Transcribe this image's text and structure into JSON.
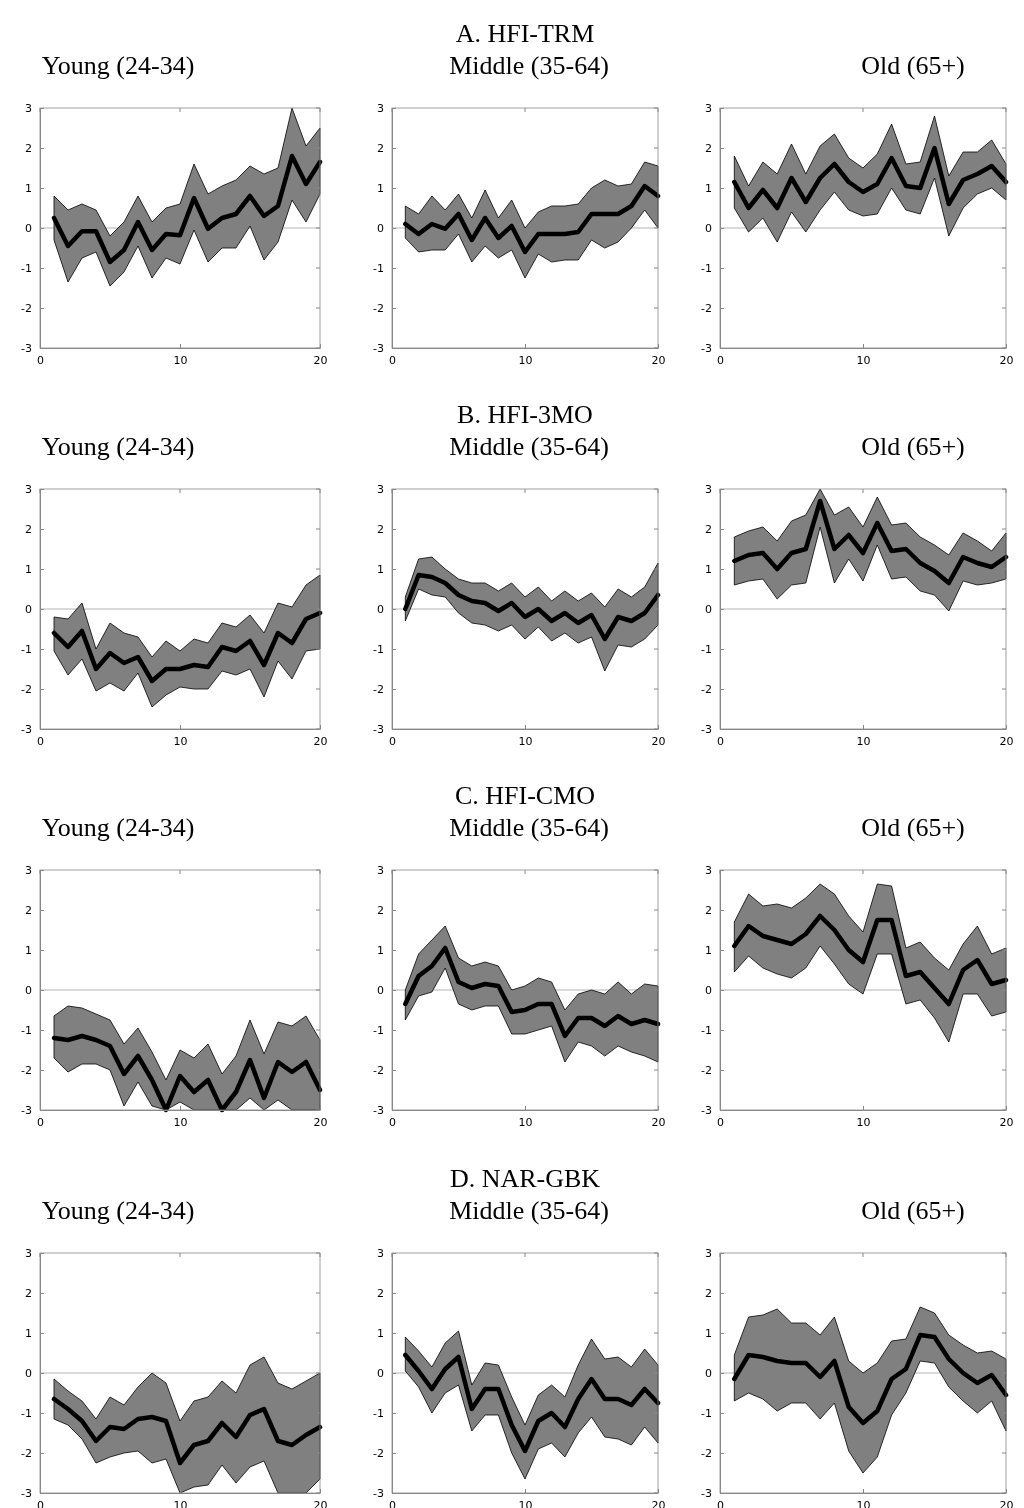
{
  "chart_data": [
    {
      "type": "line",
      "title": "Young (24-34)",
      "x": [
        1,
        2,
        3,
        4,
        5,
        6,
        7,
        8,
        9,
        10,
        11,
        12,
        13,
        14,
        15,
        16,
        17,
        18,
        19,
        20
      ],
      "xlim": [
        0,
        20
      ],
      "xticks": [
        0,
        10,
        20
      ],
      "ylim": [
        -3,
        3
      ],
      "yticks": [
        -3,
        -2,
        -1,
        0,
        1,
        2,
        3
      ],
      "ref_lines": [
        {
          "axis": "y",
          "value": 0,
          "color": "#b4b4b4"
        }
      ],
      "series": [
        {
          "color": "#000000",
          "values": [
            0.25,
            -0.45,
            -0.08,
            -0.08,
            -0.85,
            -0.55,
            0.15,
            -0.55,
            -0.15,
            -0.18,
            0.75,
            -0.02,
            0.25,
            0.35,
            0.8,
            0.3,
            0.55,
            1.8,
            1.1,
            1.65
          ],
          "upper": [
            0.8,
            0.45,
            0.6,
            0.45,
            -0.2,
            0.15,
            0.8,
            0.15,
            0.5,
            0.6,
            1.6,
            0.85,
            1.05,
            1.2,
            1.55,
            1.35,
            1.5,
            3.0,
            2.05,
            2.5
          ],
          "lower": [
            -0.3,
            -1.35,
            -0.75,
            -0.6,
            -1.45,
            -1.1,
            -0.45,
            -1.25,
            -0.75,
            -0.9,
            -0.05,
            -0.85,
            -0.5,
            -0.5,
            0.05,
            -0.8,
            -0.35,
            0.7,
            0.15,
            0.85
          ]
        }
      ]
    },
    {
      "type": "line",
      "title": "A. HFI-TRM",
      "subtitle": "Middle (35-64)",
      "x": [
        1,
        2,
        3,
        4,
        5,
        6,
        7,
        8,
        9,
        10,
        11,
        12,
        13,
        14,
        15,
        16,
        17,
        18,
        19,
        20
      ],
      "xlim": [
        0,
        20
      ],
      "xticks": [
        0,
        10,
        20
      ],
      "ylim": [
        -3,
        3
      ],
      "yticks": [
        -3,
        -2,
        -1,
        0,
        1,
        2,
        3
      ],
      "ref_lines": [
        {
          "axis": "y",
          "value": 0,
          "color": "#b4b4b4"
        }
      ],
      "series": [
        {
          "color": "#000000",
          "values": [
            0.1,
            -0.15,
            0.1,
            -0.02,
            0.35,
            -0.3,
            0.25,
            -0.25,
            0.05,
            -0.6,
            -0.15,
            -0.15,
            -0.15,
            -0.1,
            0.35,
            0.35,
            0.35,
            0.55,
            1.05,
            0.8
          ],
          "upper": [
            0.55,
            0.35,
            0.8,
            0.45,
            0.85,
            0.25,
            0.95,
            0.25,
            0.7,
            0.0,
            0.4,
            0.55,
            0.55,
            0.6,
            1.0,
            1.2,
            1.05,
            1.1,
            1.65,
            1.55
          ],
          "lower": [
            -0.25,
            -0.6,
            -0.55,
            -0.55,
            -0.15,
            -0.85,
            -0.45,
            -0.75,
            -0.55,
            -1.25,
            -0.65,
            -0.85,
            -0.8,
            -0.8,
            -0.3,
            -0.5,
            -0.35,
            0.0,
            0.45,
            0.0
          ]
        }
      ]
    },
    {
      "type": "line",
      "title": "Old (65+)",
      "x": [
        1,
        2,
        3,
        4,
        5,
        6,
        7,
        8,
        9,
        10,
        11,
        12,
        13,
        14,
        15,
        16,
        17,
        18,
        19,
        20
      ],
      "xlim": [
        0,
        20
      ],
      "xticks": [
        0,
        10,
        20
      ],
      "ylim": [
        -3,
        3
      ],
      "yticks": [
        -3,
        -2,
        -1,
        0,
        1,
        2,
        3
      ],
      "ref_lines": [
        {
          "axis": "y",
          "value": 0,
          "color": "#b4b4b4"
        }
      ],
      "series": [
        {
          "color": "#000000",
          "values": [
            1.15,
            0.5,
            0.95,
            0.5,
            1.25,
            0.65,
            1.25,
            1.6,
            1.15,
            0.9,
            1.1,
            1.75,
            1.05,
            1.0,
            2.0,
            0.6,
            1.2,
            1.35,
            1.55,
            1.15
          ],
          "upper": [
            1.8,
            1.05,
            1.65,
            1.35,
            2.1,
            1.35,
            2.05,
            2.35,
            1.75,
            1.5,
            1.85,
            2.6,
            1.6,
            1.65,
            2.8,
            1.3,
            1.9,
            1.9,
            2.2,
            1.6
          ],
          "lower": [
            0.5,
            -0.1,
            0.25,
            -0.35,
            0.4,
            -0.1,
            0.45,
            0.9,
            0.45,
            0.3,
            0.35,
            1.0,
            0.45,
            0.35,
            1.25,
            -0.2,
            0.5,
            0.85,
            1.0,
            0.7
          ]
        }
      ]
    },
    {
      "type": "line",
      "title": "Young (24-34)",
      "x": [
        1,
        2,
        3,
        4,
        5,
        6,
        7,
        8,
        9,
        10,
        11,
        12,
        13,
        14,
        15,
        16,
        17,
        18,
        19,
        20
      ],
      "xlim": [
        0,
        20
      ],
      "xticks": [
        0,
        10,
        20
      ],
      "ylim": [
        -3,
        3
      ],
      "yticks": [
        -3,
        -2,
        -1,
        0,
        1,
        2,
        3
      ],
      "ref_lines": [
        {
          "axis": "y",
          "value": 0,
          "color": "#b4b4b4"
        }
      ],
      "series": [
        {
          "color": "#000000",
          "values": [
            -0.6,
            -0.95,
            -0.55,
            -1.5,
            -1.1,
            -1.35,
            -1.2,
            -1.8,
            -1.5,
            -1.5,
            -1.4,
            -1.45,
            -0.95,
            -1.05,
            -0.8,
            -1.4,
            -0.6,
            -0.85,
            -0.25,
            -0.1
          ],
          "upper": [
            -0.2,
            -0.25,
            0.15,
            -1.0,
            -0.35,
            -0.6,
            -0.7,
            -1.2,
            -0.8,
            -1.05,
            -0.75,
            -0.85,
            -0.35,
            -0.45,
            -0.15,
            -0.6,
            0.15,
            0.05,
            0.6,
            0.85
          ],
          "lower": [
            -1.05,
            -1.65,
            -1.25,
            -2.05,
            -1.85,
            -2.05,
            -1.6,
            -2.45,
            -2.15,
            -1.95,
            -2.0,
            -2.0,
            -1.55,
            -1.65,
            -1.5,
            -2.2,
            -1.3,
            -1.75,
            -1.05,
            -1.0
          ]
        }
      ]
    },
    {
      "type": "line",
      "title": "B. HFI-3MO",
      "subtitle": "Middle (35-64)",
      "x": [
        1,
        2,
        3,
        4,
        5,
        6,
        7,
        8,
        9,
        10,
        11,
        12,
        13,
        14,
        15,
        16,
        17,
        18,
        19,
        20
      ],
      "xlim": [
        0,
        20
      ],
      "xticks": [
        0,
        10,
        20
      ],
      "ylim": [
        -3,
        3
      ],
      "yticks": [
        -3,
        -2,
        -1,
        0,
        1,
        2,
        3
      ],
      "ref_lines": [
        {
          "axis": "y",
          "value": 0,
          "color": "#b4b4b4"
        }
      ],
      "series": [
        {
          "color": "#000000",
          "values": [
            0.0,
            0.85,
            0.8,
            0.65,
            0.35,
            0.2,
            0.15,
            -0.05,
            0.15,
            -0.2,
            0.0,
            -0.3,
            -0.1,
            -0.35,
            -0.15,
            -0.75,
            -0.2,
            -0.3,
            -0.1,
            0.35
          ],
          "upper": [
            0.3,
            1.25,
            1.3,
            1.0,
            0.75,
            0.65,
            0.65,
            0.45,
            0.65,
            0.3,
            0.55,
            0.2,
            0.45,
            0.2,
            0.4,
            0.05,
            0.5,
            0.3,
            0.55,
            1.15
          ],
          "lower": [
            -0.3,
            0.5,
            0.35,
            0.3,
            -0.1,
            -0.35,
            -0.4,
            -0.55,
            -0.4,
            -0.75,
            -0.45,
            -0.8,
            -0.6,
            -0.85,
            -0.7,
            -1.55,
            -0.9,
            -0.95,
            -0.75,
            -0.4
          ]
        }
      ]
    },
    {
      "type": "line",
      "title": "Old (65+)",
      "x": [
        1,
        2,
        3,
        4,
        5,
        6,
        7,
        8,
        9,
        10,
        11,
        12,
        13,
        14,
        15,
        16,
        17,
        18,
        19,
        20
      ],
      "xlim": [
        0,
        20
      ],
      "xticks": [
        0,
        10,
        20
      ],
      "ylim": [
        -3,
        3
      ],
      "yticks": [
        -3,
        -2,
        -1,
        0,
        1,
        2,
        3
      ],
      "ref_lines": [
        {
          "axis": "y",
          "value": 0,
          "color": "#b4b4b4"
        }
      ],
      "series": [
        {
          "color": "#000000",
          "values": [
            1.2,
            1.35,
            1.4,
            1.0,
            1.4,
            1.5,
            2.7,
            1.5,
            1.85,
            1.4,
            2.15,
            1.45,
            1.5,
            1.15,
            0.95,
            0.65,
            1.3,
            1.15,
            1.05,
            1.3
          ],
          "upper": [
            1.8,
            1.95,
            2.05,
            1.7,
            2.2,
            2.35,
            3.0,
            2.35,
            2.55,
            2.05,
            2.8,
            2.1,
            2.15,
            1.8,
            1.6,
            1.35,
            1.9,
            1.7,
            1.45,
            1.9
          ],
          "lower": [
            0.6,
            0.7,
            0.75,
            0.25,
            0.6,
            0.65,
            2.05,
            0.65,
            1.25,
            0.7,
            1.6,
            0.75,
            0.8,
            0.45,
            0.35,
            -0.05,
            0.7,
            0.6,
            0.65,
            0.75
          ]
        }
      ]
    },
    {
      "type": "line",
      "title": "Young (24-34)",
      "x": [
        1,
        2,
        3,
        4,
        5,
        6,
        7,
        8,
        9,
        10,
        11,
        12,
        13,
        14,
        15,
        16,
        17,
        18,
        19,
        20
      ],
      "xlim": [
        0,
        20
      ],
      "xticks": [
        0,
        10,
        20
      ],
      "ylim": [
        -3,
        3
      ],
      "yticks": [
        -3,
        -2,
        -1,
        0,
        1,
        2,
        3
      ],
      "ref_lines": [
        {
          "axis": "y",
          "value": 0,
          "color": "#b4b4b4"
        }
      ],
      "series": [
        {
          "color": "#000000",
          "values": [
            -1.2,
            -1.25,
            -1.15,
            -1.25,
            -1.4,
            -2.1,
            -1.65,
            -2.25,
            -3.0,
            -2.15,
            -2.55,
            -2.25,
            -3.0,
            -2.55,
            -1.75,
            -2.7,
            -1.8,
            -2.05,
            -1.8,
            -2.5
          ],
          "upper": [
            -0.65,
            -0.4,
            -0.45,
            -0.6,
            -0.75,
            -1.35,
            -0.95,
            -1.55,
            -2.25,
            -1.5,
            -1.7,
            -1.35,
            -2.1,
            -1.65,
            -0.75,
            -1.6,
            -0.8,
            -0.9,
            -0.65,
            -1.25
          ],
          "lower": [
            -1.7,
            -2.05,
            -1.85,
            -1.85,
            -2.0,
            -2.9,
            -2.3,
            -2.9,
            -3.0,
            -2.8,
            -3.0,
            -3.0,
            -3.0,
            -3.0,
            -2.7,
            -3.0,
            -2.75,
            -3.0,
            -3.0,
            -3.0
          ]
        }
      ]
    },
    {
      "type": "line",
      "title": "C. HFI-CMO",
      "subtitle": "Middle (35-64)",
      "x": [
        1,
        2,
        3,
        4,
        5,
        6,
        7,
        8,
        9,
        10,
        11,
        12,
        13,
        14,
        15,
        16,
        17,
        18,
        19,
        20
      ],
      "xlim": [
        0,
        20
      ],
      "xticks": [
        0,
        10,
        20
      ],
      "ylim": [
        -3,
        3
      ],
      "yticks": [
        -3,
        -2,
        -1,
        0,
        1,
        2,
        3
      ],
      "ref_lines": [
        {
          "axis": "y",
          "value": 0,
          "color": "#b4b4b4"
        }
      ],
      "series": [
        {
          "color": "#000000",
          "values": [
            -0.35,
            0.35,
            0.6,
            1.05,
            0.2,
            0.05,
            0.15,
            0.1,
            -0.55,
            -0.5,
            -0.35,
            -0.35,
            -1.15,
            -0.7,
            -0.7,
            -0.9,
            -0.65,
            -0.85,
            -0.75,
            -0.85
          ],
          "upper": [
            0.0,
            0.9,
            1.25,
            1.6,
            0.8,
            0.6,
            0.7,
            0.6,
            0.0,
            0.1,
            0.3,
            0.2,
            -0.5,
            -0.1,
            0.0,
            -0.1,
            0.2,
            -0.1,
            0.15,
            0.1
          ],
          "lower": [
            -0.75,
            -0.15,
            -0.05,
            0.55,
            -0.35,
            -0.5,
            -0.4,
            -0.4,
            -1.1,
            -1.1,
            -1.0,
            -0.9,
            -1.8,
            -1.3,
            -1.4,
            -1.65,
            -1.4,
            -1.55,
            -1.65,
            -1.8
          ]
        }
      ]
    },
    {
      "type": "line",
      "title": "Old (65+)",
      "x": [
        1,
        2,
        3,
        4,
        5,
        6,
        7,
        8,
        9,
        10,
        11,
        12,
        13,
        14,
        15,
        16,
        17,
        18,
        19,
        20
      ],
      "xlim": [
        0,
        20
      ],
      "xticks": [
        0,
        10,
        20
      ],
      "ylim": [
        -3,
        3
      ],
      "yticks": [
        -3,
        -2,
        -1,
        0,
        1,
        2,
        3
      ],
      "ref_lines": [
        {
          "axis": "y",
          "value": 0,
          "color": "#b4b4b4"
        }
      ],
      "series": [
        {
          "color": "#000000",
          "values": [
            1.1,
            1.6,
            1.35,
            1.25,
            1.15,
            1.4,
            1.85,
            1.5,
            1.0,
            0.7,
            1.75,
            1.75,
            0.35,
            0.45,
            0.05,
            -0.35,
            0.5,
            0.75,
            0.15,
            0.25
          ],
          "upper": [
            1.7,
            2.4,
            2.1,
            2.15,
            2.05,
            2.3,
            2.65,
            2.4,
            1.85,
            1.45,
            2.65,
            2.6,
            1.05,
            1.2,
            0.8,
            0.5,
            1.15,
            1.6,
            0.9,
            1.05
          ],
          "lower": [
            0.45,
            0.85,
            0.55,
            0.4,
            0.3,
            0.55,
            1.1,
            0.65,
            0.15,
            -0.1,
            0.9,
            0.9,
            -0.35,
            -0.25,
            -0.7,
            -1.3,
            -0.1,
            -0.1,
            -0.65,
            -0.55
          ]
        }
      ]
    },
    {
      "type": "line",
      "title": "Young (24-34)",
      "x": [
        1,
        2,
        3,
        4,
        5,
        6,
        7,
        8,
        9,
        10,
        11,
        12,
        13,
        14,
        15,
        16,
        17,
        18,
        19,
        20
      ],
      "xlim": [
        0,
        20
      ],
      "xticks": [
        0,
        10,
        20
      ],
      "ylim": [
        -3,
        3
      ],
      "yticks": [
        -3,
        -2,
        -1,
        0,
        1,
        2,
        3
      ],
      "ref_lines": [
        {
          "axis": "y",
          "value": 0,
          "color": "#b4b4b4"
        }
      ],
      "series": [
        {
          "color": "#000000",
          "values": [
            -0.65,
            -0.9,
            -1.2,
            -1.7,
            -1.35,
            -1.4,
            -1.15,
            -1.1,
            -1.2,
            -2.25,
            -1.8,
            -1.7,
            -1.25,
            -1.6,
            -1.05,
            -0.9,
            -1.7,
            -1.8,
            -1.55,
            -1.35
          ],
          "upper": [
            -0.15,
            -0.45,
            -0.7,
            -1.15,
            -0.6,
            -0.8,
            -0.35,
            0.0,
            -0.25,
            -1.2,
            -0.7,
            -0.6,
            -0.2,
            -0.5,
            0.2,
            0.4,
            -0.25,
            -0.4,
            -0.2,
            0.0
          ],
          "lower": [
            -1.15,
            -1.3,
            -1.65,
            -2.25,
            -2.1,
            -2.0,
            -1.95,
            -2.25,
            -2.15,
            -3.0,
            -2.85,
            -2.8,
            -2.3,
            -2.75,
            -2.35,
            -2.2,
            -3.0,
            -3.0,
            -3.0,
            -2.65
          ]
        }
      ]
    },
    {
      "type": "line",
      "title": "D. NAR-GBK",
      "subtitle": "Middle (35-64)",
      "x": [
        1,
        2,
        3,
        4,
        5,
        6,
        7,
        8,
        9,
        10,
        11,
        12,
        13,
        14,
        15,
        16,
        17,
        18,
        19,
        20
      ],
      "xlim": [
        0,
        20
      ],
      "xticks": [
        0,
        10,
        20
      ],
      "ylim": [
        -3,
        3
      ],
      "yticks": [
        -3,
        -2,
        -1,
        0,
        1,
        2,
        3
      ],
      "ref_lines": [
        {
          "axis": "y",
          "value": 0,
          "color": "#b4b4b4"
        }
      ],
      "series": [
        {
          "color": "#000000",
          "values": [
            0.45,
            0.05,
            -0.4,
            0.1,
            0.4,
            -0.9,
            -0.4,
            -0.4,
            -1.3,
            -1.95,
            -1.2,
            -1.0,
            -1.35,
            -0.65,
            -0.15,
            -0.65,
            -0.65,
            -0.8,
            -0.4,
            -0.75
          ],
          "upper": [
            0.9,
            0.55,
            0.15,
            0.75,
            1.05,
            -0.3,
            0.25,
            0.2,
            -0.6,
            -1.3,
            -0.55,
            -0.3,
            -0.6,
            0.2,
            0.85,
            0.35,
            0.4,
            0.15,
            0.6,
            0.2
          ],
          "lower": [
            0.05,
            -0.35,
            -1.0,
            -0.5,
            -0.3,
            -1.45,
            -1.05,
            -1.05,
            -2.0,
            -2.65,
            -1.9,
            -1.75,
            -2.1,
            -1.5,
            -1.1,
            -1.6,
            -1.65,
            -1.8,
            -1.35,
            -1.75
          ]
        }
      ]
    },
    {
      "type": "line",
      "title": "Old (65+)",
      "x": [
        1,
        2,
        3,
        4,
        5,
        6,
        7,
        8,
        9,
        10,
        11,
        12,
        13,
        14,
        15,
        16,
        17,
        18,
        19,
        20
      ],
      "xlim": [
        0,
        20
      ],
      "xticks": [
        0,
        10,
        20
      ],
      "ylim": [
        -3,
        3
      ],
      "yticks": [
        -3,
        -2,
        -1,
        0,
        1,
        2,
        3
      ],
      "ref_lines": [
        {
          "axis": "y",
          "value": 0,
          "color": "#b4b4b4"
        }
      ],
      "series": [
        {
          "color": "#000000",
          "values": [
            -0.15,
            0.45,
            0.4,
            0.3,
            0.25,
            0.25,
            -0.1,
            0.3,
            -0.85,
            -1.25,
            -0.95,
            -0.15,
            0.1,
            0.95,
            0.9,
            0.35,
            0.0,
            -0.25,
            -0.05,
            -0.55
          ],
          "upper": [
            0.45,
            1.4,
            1.45,
            1.6,
            1.25,
            1.25,
            0.95,
            1.4,
            0.3,
            0.0,
            0.25,
            0.8,
            0.85,
            1.65,
            1.5,
            0.95,
            0.7,
            0.5,
            0.55,
            0.35
          ],
          "lower": [
            -0.7,
            -0.5,
            -0.65,
            -0.95,
            -0.75,
            -0.75,
            -1.15,
            -0.75,
            -1.95,
            -2.5,
            -2.1,
            -1.05,
            -0.5,
            0.3,
            0.25,
            -0.35,
            -0.7,
            -1.0,
            -0.7,
            -1.45
          ]
        }
      ]
    }
  ]
}
